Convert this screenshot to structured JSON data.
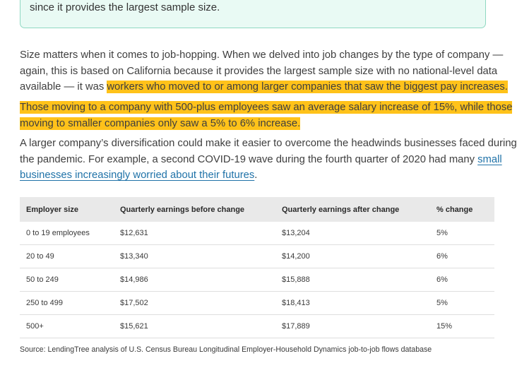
{
  "callout": {
    "text": "since it provides the largest sample size."
  },
  "article": {
    "p1": {
      "line1": "Size matters when it comes to job-hopping. When we delved into job changes by the type of company —",
      "line2": "again, this is based on California because it provides the largest sample size with no national-level data",
      "line3_plain": "available — it was ",
      "line3_highlight": "workers who moved to or among larger companies that saw the biggest pay increases."
    },
    "p2": {
      "line1": "Those moving to a company with 500-plus employees saw an average salary increase of 15%, while those",
      "line2": "moving to smaller companies only saw a 5% to 6% increase."
    },
    "p3": {
      "line1": "A larger company’s diversification could make it easier to overcome the headwinds businesses faced during",
      "line2_plain": "the pandemic. For example, a second COVID-19 wave during the fourth quarter of 2020 had many ",
      "line2_link": "small",
      "line3_link": "businesses increasingly worried about their futures",
      "line3_end": "."
    }
  },
  "table": {
    "headers": [
      "Employer size",
      "Quarterly earnings before change",
      "Quarterly earnings after change",
      "% change"
    ],
    "rows": [
      [
        "0 to 19 employees",
        "$12,631",
        "$13,204",
        "5%"
      ],
      [
        "20 to 49",
        "$13,340",
        "$14,200",
        "6%"
      ],
      [
        "50 to 249",
        "$14,986",
        "$15,888",
        "6%"
      ],
      [
        "250 to 499",
        "$17,502",
        "$18,413",
        "5%"
      ],
      [
        "500+",
        "$15,621",
        "$17,889",
        "15%"
      ]
    ],
    "source": "Source: LendingTree analysis of U.S. Census Bureau Longitudinal Employer-Household Dynamics job-to-job flows database"
  },
  "colors": {
    "highlight": "#ffc21a",
    "link": "#1f72a8",
    "callout_bg": "#e9faf4",
    "callout_border": "#8fd8c2",
    "table_header_bg": "#e9e9e9"
  }
}
